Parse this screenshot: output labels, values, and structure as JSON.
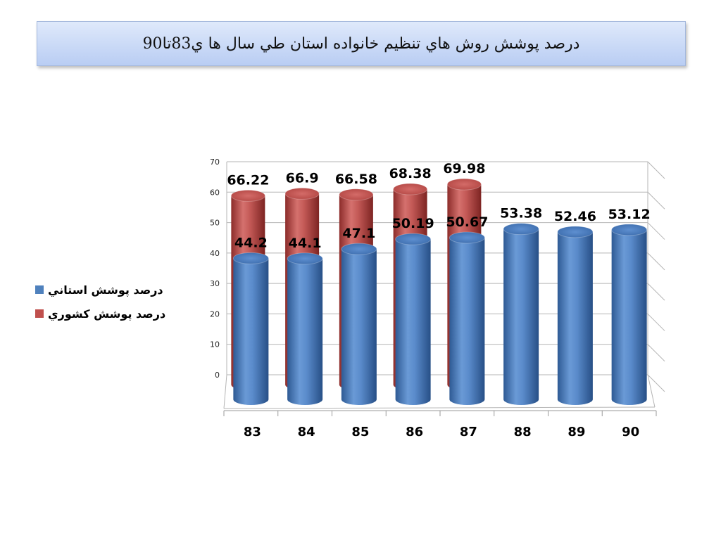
{
  "title": "درصد پوشش روش هاي تنظيم خانواده استان طي سال ها ي83تا90",
  "colors": {
    "blue": "#4f81bd",
    "red": "#c0504d"
  },
  "chart_data": {
    "type": "bar",
    "categories": [
      "83",
      "84",
      "85",
      "86",
      "87",
      "88",
      "89",
      "90"
    ],
    "series": [
      {
        "name": "درصد پوشش استاني",
        "values": [
          44.2,
          44.1,
          47.1,
          50.19,
          50.67,
          53.38,
          52.46,
          53.12
        ]
      },
      {
        "name": "درصد پوشش كشوري",
        "values": [
          66.22,
          66.9,
          66.58,
          68.38,
          69.98,
          null,
          null,
          null
        ]
      }
    ],
    "yticks": [
      0,
      10,
      20,
      30,
      40,
      50,
      60,
      70
    ],
    "ylim": [
      0,
      70
    ],
    "legend": "left",
    "grid": true
  }
}
